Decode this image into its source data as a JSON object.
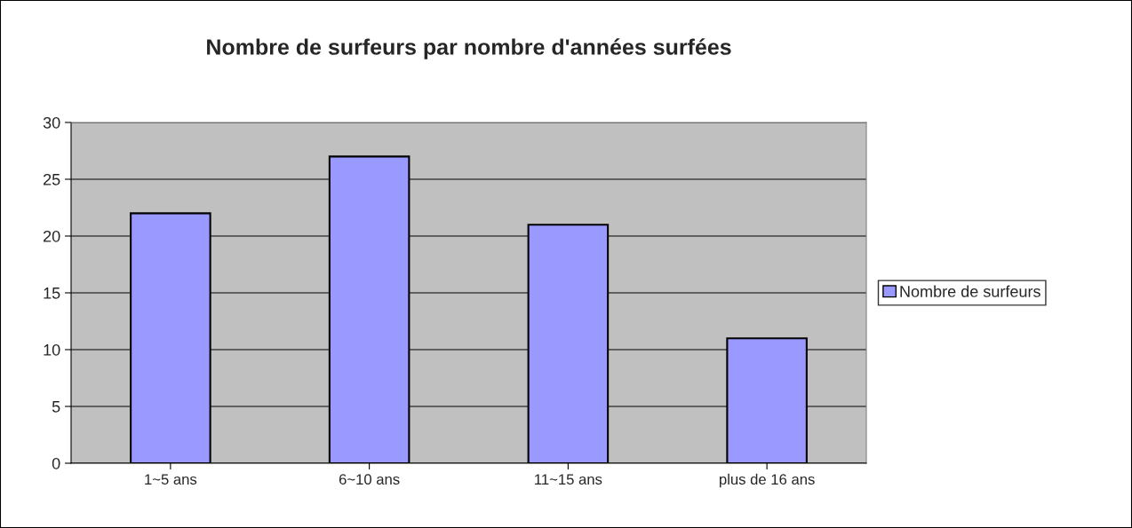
{
  "chart_data": {
    "type": "bar",
    "title": "Nombre de surfeurs par nombre d'années surfées",
    "categories": [
      "1~5 ans",
      "6~10 ans",
      "11~15 ans",
      "plus de 16 ans"
    ],
    "series": [
      {
        "name": "Nombre de surfeurs",
        "color": "#9999ff",
        "values": [
          22,
          27,
          21,
          11
        ]
      }
    ],
    "ylim": [
      0,
      30
    ],
    "yticks": [
      0,
      5,
      10,
      15,
      20,
      25,
      30
    ],
    "grid": "y",
    "legend": "right"
  }
}
